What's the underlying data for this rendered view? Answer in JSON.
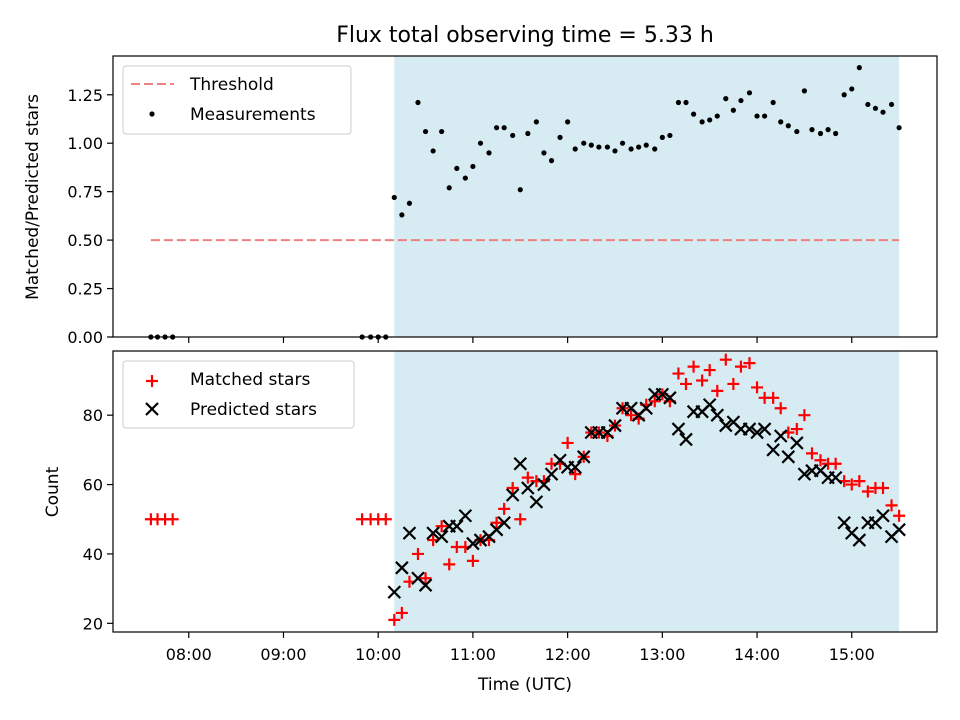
{
  "chart_data": {
    "title": "Flux total observing time = 5.33 h",
    "xlabel": "Time (UTC)",
    "xlim": [
      7.2,
      15.9
    ],
    "x_ticks": [
      8,
      9,
      10,
      11,
      12,
      13,
      14,
      15
    ],
    "x_tick_labels": [
      "08:00",
      "09:00",
      "10:00",
      "11:00",
      "12:00",
      "13:00",
      "14:00",
      "15:00"
    ],
    "shaded_span": [
      10.17,
      15.5
    ],
    "shade_color": "#add8e6",
    "panels": [
      {
        "type": "scatter",
        "ylabel": "Matched/Predicted stars",
        "ylim": [
          0,
          1.45
        ],
        "y_ticks": [
          0.0,
          0.25,
          0.5,
          0.75,
          1.0,
          1.25
        ],
        "y_tick_labels": [
          "0.00",
          "0.25",
          "0.50",
          "0.75",
          "1.00",
          "1.25"
        ],
        "legend": [
          "Threshold",
          "Measurements"
        ],
        "legend_position": "top-left",
        "threshold": {
          "value": 0.5,
          "x_range": [
            7.6,
            15.5
          ],
          "color": "#f08080"
        },
        "series": [
          {
            "name": "Measurements",
            "marker": "dot",
            "color": "#000000",
            "x": [
              7.6,
              7.67,
              7.75,
              7.83,
              9.83,
              9.92,
              10.0,
              10.08,
              10.17,
              10.25,
              10.33,
              10.42,
              10.5,
              10.58,
              10.67,
              10.75,
              10.83,
              10.92,
              11.0,
              11.08,
              11.17,
              11.25,
              11.33,
              11.42,
              11.5,
              11.58,
              11.67,
              11.75,
              11.83,
              11.92,
              12.0,
              12.08,
              12.17,
              12.25,
              12.33,
              12.42,
              12.5,
              12.58,
              12.67,
              12.75,
              12.83,
              12.92,
              13.0,
              13.08,
              13.17,
              13.25,
              13.33,
              13.42,
              13.5,
              13.58,
              13.67,
              13.75,
              13.83,
              13.92,
              14.0,
              14.08,
              14.17,
              14.25,
              14.33,
              14.42,
              14.5,
              14.58,
              14.67,
              14.75,
              14.83,
              14.92,
              15.0,
              15.08,
              15.17,
              15.25,
              15.33,
              15.42,
              15.5
            ],
            "y": [
              0,
              0,
              0,
              0,
              0,
              0,
              0,
              0,
              0.72,
              0.63,
              0.69,
              1.21,
              1.06,
              0.96,
              1.06,
              0.77,
              0.87,
              0.82,
              0.88,
              1.0,
              0.95,
              1.08,
              1.08,
              1.04,
              0.76,
              1.05,
              1.11,
              0.95,
              0.91,
              1.03,
              1.11,
              0.97,
              1.0,
              0.99,
              0.98,
              0.98,
              0.96,
              1.0,
              0.97,
              0.98,
              0.99,
              0.97,
              1.03,
              1.04,
              1.21,
              1.21,
              1.15,
              1.11,
              1.12,
              1.14,
              1.23,
              1.17,
              1.22,
              1.26,
              1.14,
              1.14,
              1.21,
              1.11,
              1.09,
              1.06,
              1.27,
              1.07,
              1.05,
              1.07,
              1.05,
              1.25,
              1.28,
              1.39,
              1.2,
              1.18,
              1.16,
              1.2,
              1.08
            ]
          }
        ]
      },
      {
        "type": "scatter",
        "ylabel": "Count",
        "ylim": [
          17.5,
          98.5
        ],
        "y_ticks": [
          20,
          40,
          60,
          80
        ],
        "y_tick_labels": [
          "20",
          "40",
          "60",
          "80"
        ],
        "legend": [
          "Matched stars",
          "Predicted stars"
        ],
        "legend_position": "top-left",
        "series": [
          {
            "name": "Matched stars",
            "marker": "plus",
            "color": "#ff0000",
            "x": [
              7.6,
              7.67,
              7.75,
              7.83,
              9.83,
              9.92,
              10.0,
              10.08,
              10.17,
              10.25,
              10.33,
              10.42,
              10.5,
              10.58,
              10.67,
              10.75,
              10.83,
              10.92,
              11.0,
              11.08,
              11.17,
              11.25,
              11.33,
              11.42,
              11.5,
              11.58,
              11.67,
              11.75,
              11.83,
              11.92,
              12.0,
              12.08,
              12.17,
              12.25,
              12.33,
              12.42,
              12.5,
              12.58,
              12.67,
              12.75,
              12.83,
              12.92,
              13.0,
              13.08,
              13.17,
              13.25,
              13.33,
              13.42,
              13.5,
              13.58,
              13.67,
              13.75,
              13.83,
              13.92,
              14.0,
              14.08,
              14.17,
              14.25,
              14.33,
              14.42,
              14.5,
              14.58,
              14.67,
              14.75,
              14.83,
              14.92,
              15.0,
              15.08,
              15.17,
              15.25,
              15.33,
              15.42,
              15.5
            ],
            "y": [
              50,
              50,
              50,
              50,
              50,
              50,
              50,
              50,
              21,
              23,
              32,
              40,
              33,
              44,
              48,
              37,
              42,
              42,
              38,
              44,
              44,
              49,
              53,
              59,
              50,
              62,
              61,
              61,
              66,
              66,
              72,
              63,
              68,
              75,
              75,
              74,
              77,
              82,
              80,
              79,
              83,
              84,
              86,
              84,
              92,
              89,
              94,
              90,
              93,
              87,
              96,
              89,
              94,
              95,
              88,
              85,
              85,
              82,
              75,
              76,
              80,
              69,
              67,
              66,
              66,
              61,
              60,
              61,
              58,
              59,
              59,
              54,
              51
            ]
          },
          {
            "name": "Predicted stars",
            "marker": "x",
            "color": "#000000",
            "x": [
              10.17,
              10.25,
              10.33,
              10.42,
              10.5,
              10.58,
              10.67,
              10.75,
              10.83,
              10.92,
              11.0,
              11.08,
              11.17,
              11.25,
              11.33,
              11.42,
              11.5,
              11.58,
              11.67,
              11.75,
              11.83,
              11.92,
              12.0,
              12.08,
              12.17,
              12.25,
              12.33,
              12.42,
              12.5,
              12.58,
              12.67,
              12.75,
              12.83,
              12.92,
              13.0,
              13.08,
              13.17,
              13.25,
              13.33,
              13.42,
              13.5,
              13.58,
              13.67,
              13.75,
              13.83,
              13.92,
              14.0,
              14.08,
              14.17,
              14.25,
              14.33,
              14.42,
              14.5,
              14.58,
              14.67,
              14.75,
              14.83,
              14.92,
              15.0,
              15.08,
              15.17,
              15.25,
              15.33,
              15.42,
              15.5
            ],
            "y": [
              29,
              36,
              46,
              33,
              31,
              46,
              45,
              48,
              48,
              51,
              43,
              44,
              45,
              47,
              49,
              57,
              66,
              59,
              55,
              60,
              63,
              67,
              65,
              65,
              68,
              75,
              75,
              75,
              77,
              82,
              82,
              80,
              82,
              86,
              86,
              85,
              76,
              73,
              81,
              81,
              83,
              80,
              77,
              78,
              76,
              76,
              75,
              76,
              70,
              74,
              68,
              72,
              63,
              64,
              64,
              62,
              62,
              49,
              46,
              44,
              49,
              49,
              51,
              45,
              47
            ]
          }
        ]
      }
    ]
  }
}
